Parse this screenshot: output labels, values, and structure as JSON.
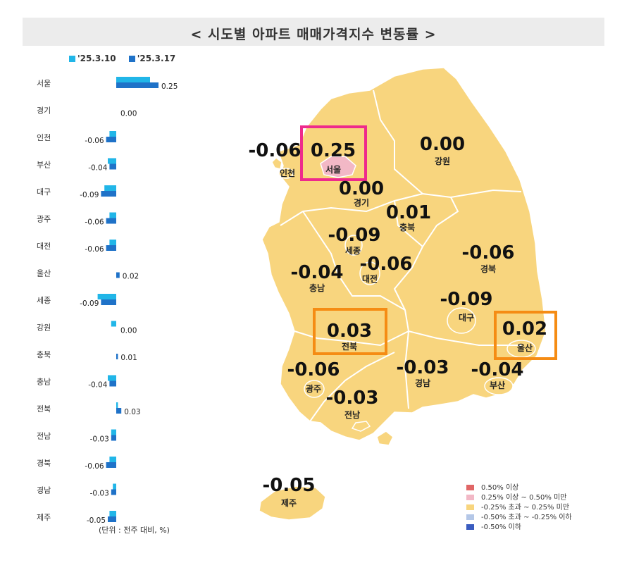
{
  "title": "< 시도별 아파트 매매가격지수 변동률 >",
  "unit_note": "(단위 : 전주 대비, %)",
  "colors": {
    "prev_week": "#21b6e8",
    "this_week": "#1f72c8",
    "map_fill": "#f8d57e",
    "map_stroke": "#c9c9c9",
    "seoul_fill": "#f2b8c6",
    "seoul_box": "#ee2a8c",
    "highlight_box": "#f58c14"
  },
  "chart_data": [
    {
      "type": "bar",
      "orientation": "horizontal",
      "categories": [
        "서울",
        "경기",
        "인천",
        "부산",
        "대구",
        "광주",
        "대전",
        "울산",
        "세종",
        "강원",
        "충북",
        "충남",
        "전북",
        "전남",
        "경북",
        "경남",
        "제주"
      ],
      "series": [
        {
          "name": "'25.3.10",
          "values": [
            0.2,
            0.0,
            -0.04,
            -0.05,
            -0.07,
            -0.04,
            -0.04,
            0.0,
            -0.11,
            -0.03,
            0.0,
            -0.05,
            0.01,
            -0.03,
            -0.04,
            -0.02,
            -0.04
          ]
        },
        {
          "name": "'25.3.17",
          "values": [
            0.25,
            0.0,
            -0.06,
            -0.04,
            -0.09,
            -0.06,
            -0.06,
            0.02,
            -0.09,
            0.0,
            0.01,
            -0.04,
            0.03,
            -0.03,
            -0.06,
            -0.03,
            -0.05
          ]
        }
      ],
      "data_labels": [
        "0.25",
        "0.00",
        "-0.06",
        "-0.04",
        "-0.09",
        "-0.06",
        "-0.06",
        "0.02",
        "-0.09",
        "0.00",
        "0.01",
        "-0.04",
        "0.03",
        "-0.03",
        "-0.06",
        "-0.03",
        "-0.05"
      ],
      "legend": "top-left",
      "grid": false
    },
    {
      "type": "choropleth_map",
      "regions": [
        {
          "name": "서울",
          "value": "0.25"
        },
        {
          "name": "인천",
          "value": "-0.06"
        },
        {
          "name": "경기",
          "value": "0.00"
        },
        {
          "name": "강원",
          "value": "0.00"
        },
        {
          "name": "충북",
          "value": "0.01"
        },
        {
          "name": "세종",
          "value": "-0.09"
        },
        {
          "name": "대전",
          "value": "-0.06"
        },
        {
          "name": "충남",
          "value": "-0.04"
        },
        {
          "name": "경북",
          "value": "-0.06"
        },
        {
          "name": "대구",
          "value": "-0.09"
        },
        {
          "name": "전북",
          "value": "0.03"
        },
        {
          "name": "울산",
          "value": "0.02"
        },
        {
          "name": "광주",
          "value": "-0.06"
        },
        {
          "name": "경남",
          "value": "-0.03"
        },
        {
          "name": "부산",
          "value": "-0.04"
        },
        {
          "name": "전남",
          "value": "-0.03"
        },
        {
          "name": "제주",
          "value": "-0.05"
        }
      ],
      "legend": [
        {
          "label": "0.50% 이상",
          "color": "#e06666"
        },
        {
          "label": "0.25% 이상 ~ 0.50% 미만",
          "color": "#f2b8c6"
        },
        {
          "label": "-0.25% 초과 ~ 0.25% 미만",
          "color": "#f8d57e"
        },
        {
          "label": "-0.50% 초과 ~ -0.25% 이하",
          "color": "#b4c7e7"
        },
        {
          "label": "-0.50% 이하",
          "color": "#3a5cc0"
        }
      ],
      "legend_position": "bottom-right"
    }
  ]
}
